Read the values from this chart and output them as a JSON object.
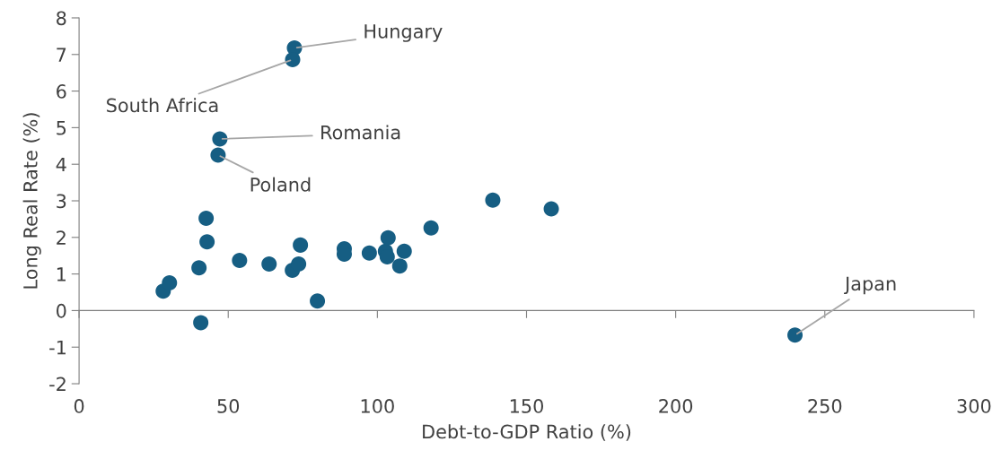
{
  "chart_data": {
    "type": "scatter",
    "xlabel": "Debt-to-GDP Ratio (%)",
    "ylabel": "Long Real Rate (%)",
    "xlim": [
      0,
      300
    ],
    "xticks": [
      0,
      50,
      100,
      150,
      200,
      250,
      300
    ],
    "ylim": [
      -2,
      8
    ],
    "yticks": [
      -2,
      -1,
      0,
      1,
      2,
      3,
      4,
      5,
      6,
      7,
      8
    ],
    "marker": "circle",
    "series": [
      {
        "color": "#165e83",
        "x": [
          28.2,
          30.3,
          40.2,
          42.6,
          42.9,
          40.8,
          53.8,
          63.7,
          71.5,
          73.6,
          74.2,
          79.9,
          88.9,
          88.9,
          97.3,
          102.7,
          103.3,
          103.6,
          107.5,
          109.0,
          118.0,
          138.7,
          158.3,
          240,
          72.2,
          71.6,
          47.2,
          46.6
        ],
        "values": [
          0.53,
          0.76,
          1.17,
          2.52,
          1.88,
          -0.33,
          1.37,
          1.27,
          1.1,
          1.27,
          1.79,
          0.26,
          1.69,
          1.54,
          1.57,
          1.62,
          1.47,
          1.99,
          1.22,
          1.62,
          2.26,
          3.02,
          2.78,
          -0.67,
          7.18,
          6.86,
          4.69,
          4.25
        ]
      }
    ],
    "annotations": [
      {
        "text": "Hungary",
        "x": 72.2,
        "y": 7.18
      },
      {
        "text": "South Africa",
        "x": 71.6,
        "y": 6.86
      },
      {
        "text": "Romania",
        "x": 47.2,
        "y": 4.69
      },
      {
        "text": "Poland",
        "x": 46.6,
        "y": 4.25
      },
      {
        "text": "Japan",
        "x": 240,
        "y": -0.67
      }
    ]
  }
}
